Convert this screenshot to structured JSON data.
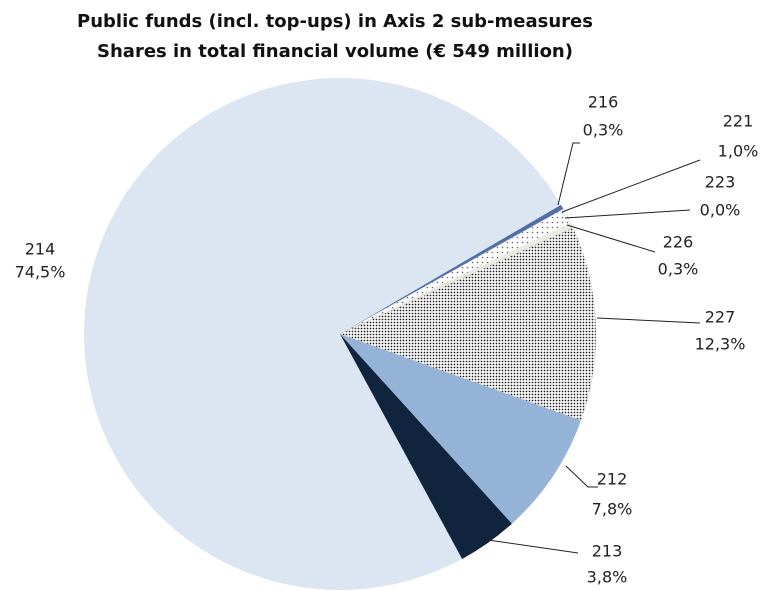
{
  "chart_data": {
    "type": "pie",
    "title": [
      "Public funds (incl. top-ups) in Axis 2 sub-measures",
      "Shares in total financial volume (€ 549 million)"
    ],
    "categories": [
      "214",
      "216",
      "221",
      "223",
      "226",
      "227",
      "212",
      "213"
    ],
    "values": [
      74.5,
      0.3,
      1.0,
      0.0,
      0.3,
      12.3,
      7.8,
      3.8
    ],
    "value_labels": [
      "74,5%",
      "0,3%",
      "1,0%",
      "0,0%",
      "0,3%",
      "12,3%",
      "7,8%",
      "3,8%"
    ],
    "colors": [
      "#dce6f2",
      "#4f6fa6",
      "#ffffff",
      "#ffffff",
      "#eeece1",
      "#ffffff",
      "#95b3d7",
      "#10243e"
    ],
    "patterns": [
      null,
      null,
      "sparse-dots",
      null,
      null,
      "dense-dots",
      null,
      null
    ]
  }
}
